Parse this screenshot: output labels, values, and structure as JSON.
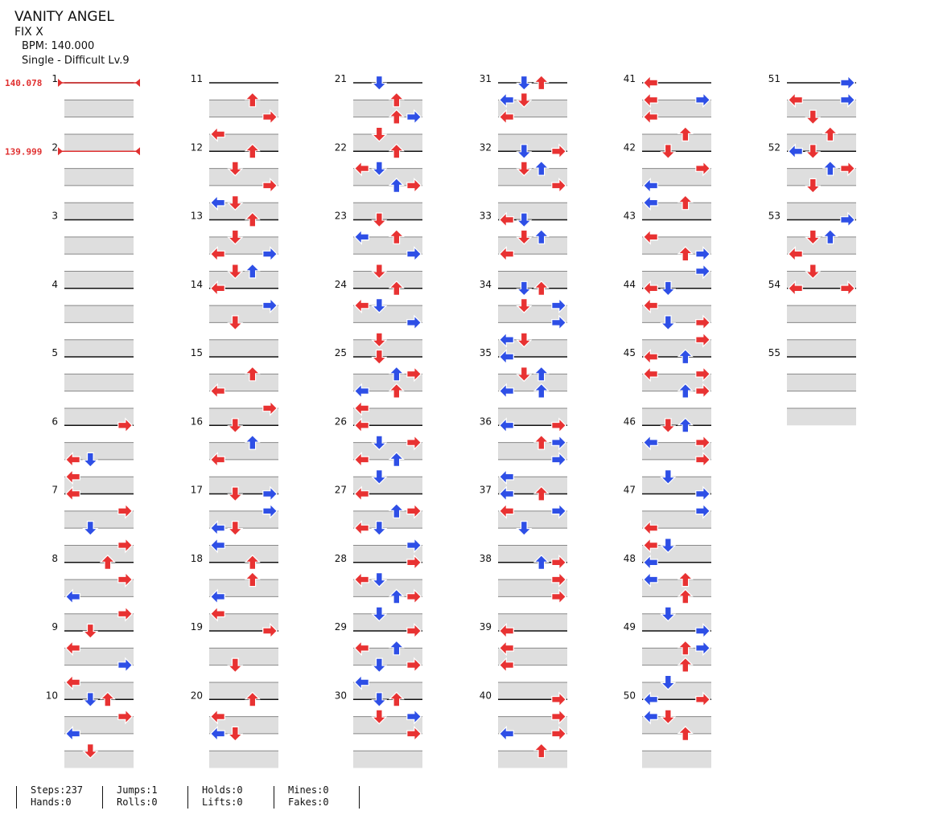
{
  "song": {
    "title": "VANITY ANGEL",
    "subtitle": "FIX X",
    "bpm_line": "BPM: 140.000",
    "difficulty_line": "Single - Difficult Lv.9"
  },
  "bpm_changes": [
    {
      "measure": 1,
      "label": "140.078"
    },
    {
      "measure": 2,
      "label": "139.999"
    }
  ],
  "colors": {
    "quarter": "#e83232",
    "eighth": "#2e4fe6",
    "bpm_marker": "#e03030",
    "band": "#dedede"
  },
  "columns": [
    {
      "start": 1,
      "end": 10
    },
    {
      "start": 11,
      "end": 20
    },
    {
      "start": 21,
      "end": 30
    },
    {
      "start": 31,
      "end": 40
    },
    {
      "start": 41,
      "end": 50
    },
    {
      "start": 51,
      "end": 55
    }
  ],
  "notes": {
    "6": [
      [
        0,
        3,
        "r"
      ],
      [
        2,
        0,
        "r"
      ],
      [
        2,
        1,
        "b"
      ],
      [
        3,
        0,
        "r"
      ]
    ],
    "7": [
      [
        0,
        0,
        "r"
      ],
      [
        1,
        3,
        "r"
      ],
      [
        2,
        1,
        "b"
      ],
      [
        3,
        3,
        "r"
      ]
    ],
    "8": [
      [
        0,
        2,
        "r"
      ],
      [
        1,
        3,
        "r"
      ],
      [
        2,
        0,
        "b"
      ],
      [
        3,
        3,
        "r"
      ]
    ],
    "9": [
      [
        0,
        1,
        "r"
      ],
      [
        1,
        0,
        "r"
      ],
      [
        2,
        3,
        "b"
      ],
      [
        3,
        0,
        "r"
      ]
    ],
    "10": [
      [
        0,
        1,
        "b"
      ],
      [
        0,
        2,
        "r"
      ],
      [
        1,
        3,
        "r"
      ],
      [
        2,
        0,
        "b"
      ],
      [
        3,
        1,
        "r"
      ]
    ],
    "11": [
      [
        1,
        2,
        "r"
      ],
      [
        2,
        3,
        "r"
      ],
      [
        3,
        0,
        "r"
      ]
    ],
    "12": [
      [
        0,
        2,
        "r"
      ],
      [
        1,
        1,
        "r"
      ],
      [
        2,
        3,
        "r"
      ],
      [
        3,
        0,
        "b"
      ],
      [
        3,
        1,
        "r"
      ]
    ],
    "13": [
      [
        0,
        2,
        "r"
      ],
      [
        1,
        1,
        "r"
      ],
      [
        2,
        0,
        "r"
      ],
      [
        2,
        3,
        "b"
      ],
      [
        3,
        1,
        "r"
      ],
      [
        3,
        2,
        "b"
      ]
    ],
    "14": [
      [
        0,
        0,
        "r"
      ],
      [
        1,
        3,
        "b"
      ],
      [
        2,
        1,
        "r"
      ]
    ],
    "15": [
      [
        1,
        2,
        "r"
      ],
      [
        2,
        0,
        "r"
      ],
      [
        3,
        3,
        "r"
      ]
    ],
    "16": [
      [
        0,
        1,
        "r"
      ],
      [
        1,
        2,
        "b"
      ],
      [
        2,
        0,
        "r"
      ]
    ],
    "17": [
      [
        0,
        1,
        "r"
      ],
      [
        0,
        3,
        "b"
      ],
      [
        1,
        3,
        "b"
      ],
      [
        2,
        0,
        "b"
      ],
      [
        2,
        1,
        "r"
      ],
      [
        3,
        0,
        "b"
      ]
    ],
    "18": [
      [
        0,
        2,
        "r"
      ],
      [
        1,
        2,
        "r"
      ],
      [
        2,
        0,
        "b"
      ],
      [
        3,
        0,
        "r"
      ]
    ],
    "19": [
      [
        0,
        3,
        "b"
      ],
      [
        0,
        3,
        "r"
      ],
      [
        2,
        1,
        "b"
      ],
      [
        2,
        1,
        "r"
      ]
    ],
    "20": [
      [
        0,
        2,
        "r"
      ],
      [
        1,
        0,
        "r"
      ],
      [
        2,
        0,
        "b"
      ],
      [
        2,
        1,
        "r"
      ]
    ],
    "21": [
      [
        0,
        1,
        "b"
      ],
      [
        1,
        2,
        "r"
      ],
      [
        2,
        2,
        "r"
      ],
      [
        2,
        3,
        "b"
      ],
      [
        3,
        1,
        "r"
      ]
    ],
    "22": [
      [
        0,
        2,
        "r"
      ],
      [
        1,
        0,
        "r"
      ],
      [
        1,
        1,
        "b"
      ],
      [
        2,
        2,
        "b"
      ],
      [
        2,
        3,
        "r"
      ]
    ],
    "23": [
      [
        0,
        1,
        "r"
      ],
      [
        1,
        2,
        "r"
      ],
      [
        1,
        0,
        "b"
      ],
      [
        2,
        3,
        "b"
      ],
      [
        3,
        1,
        "r"
      ]
    ],
    "24": [
      [
        0,
        2,
        "r"
      ],
      [
        1,
        0,
        "r"
      ],
      [
        1,
        1,
        "b"
      ],
      [
        2,
        3,
        "b"
      ],
      [
        3,
        1,
        "r"
      ]
    ],
    "25": [
      [
        0,
        1,
        "r"
      ],
      [
        1,
        3,
        "r"
      ],
      [
        1,
        2,
        "b"
      ],
      [
        2,
        0,
        "b"
      ],
      [
        2,
        2,
        "r"
      ],
      [
        3,
        0,
        "r"
      ]
    ],
    "26": [
      [
        0,
        0,
        "r"
      ],
      [
        1,
        3,
        "r"
      ],
      [
        1,
        1,
        "b"
      ],
      [
        2,
        2,
        "b"
      ],
      [
        2,
        0,
        "r"
      ],
      [
        3,
        1,
        "b"
      ]
    ],
    "27": [
      [
        0,
        0,
        "r"
      ],
      [
        1,
        3,
        "r"
      ],
      [
        1,
        2,
        "b"
      ],
      [
        2,
        1,
        "b"
      ],
      [
        2,
        0,
        "r"
      ],
      [
        3,
        3,
        "b"
      ]
    ],
    "28": [
      [
        0,
        3,
        "r"
      ],
      [
        1,
        0,
        "r"
      ],
      [
        1,
        1,
        "b"
      ],
      [
        2,
        2,
        "b"
      ],
      [
        2,
        3,
        "r"
      ],
      [
        3,
        1,
        "b"
      ]
    ],
    "29": [
      [
        0,
        3,
        "r"
      ],
      [
        1,
        0,
        "r"
      ],
      [
        1,
        2,
        "b"
      ],
      [
        2,
        1,
        "b"
      ],
      [
        2,
        3,
        "r"
      ],
      [
        3,
        0,
        "b"
      ]
    ],
    "30": [
      [
        0,
        2,
        "r"
      ],
      [
        0,
        1,
        "b"
      ],
      [
        1,
        3,
        "b"
      ],
      [
        1,
        1,
        "r"
      ],
      [
        2,
        3,
        "r"
      ]
    ],
    "31": [
      [
        0,
        2,
        "r"
      ],
      [
        0,
        1,
        "b"
      ],
      [
        1,
        0,
        "b"
      ],
      [
        1,
        1,
        "r"
      ],
      [
        2,
        0,
        "r"
      ]
    ],
    "32": [
      [
        0,
        3,
        "r"
      ],
      [
        0,
        1,
        "b"
      ],
      [
        1,
        2,
        "b"
      ],
      [
        1,
        1,
        "r"
      ],
      [
        2,
        3,
        "r"
      ]
    ],
    "33": [
      [
        0,
        0,
        "r"
      ],
      [
        0,
        1,
        "b"
      ],
      [
        1,
        2,
        "b"
      ],
      [
        1,
        1,
        "r"
      ],
      [
        2,
        0,
        "r"
      ]
    ],
    "34": [
      [
        0,
        2,
        "r"
      ],
      [
        0,
        1,
        "b"
      ],
      [
        1,
        3,
        "b"
      ],
      [
        1,
        1,
        "r"
      ],
      [
        2,
        3,
        "b"
      ],
      [
        3,
        0,
        "b"
      ],
      [
        3,
        1,
        "r"
      ]
    ],
    "35": [
      [
        0,
        0,
        "b"
      ],
      [
        1,
        2,
        "b"
      ],
      [
        1,
        1,
        "r"
      ],
      [
        2,
        2,
        "b"
      ],
      [
        2,
        0,
        "b"
      ]
    ],
    "36": [
      [
        0,
        3,
        "r"
      ],
      [
        0,
        0,
        "b"
      ],
      [
        1,
        3,
        "b"
      ],
      [
        1,
        2,
        "r"
      ],
      [
        2,
        3,
        "b"
      ],
      [
        3,
        0,
        "b"
      ]
    ],
    "37": [
      [
        0,
        2,
        "r"
      ],
      [
        0,
        0,
        "b"
      ],
      [
        1,
        3,
        "b"
      ],
      [
        1,
        0,
        "r"
      ],
      [
        2,
        1,
        "b"
      ]
    ],
    "38": [
      [
        0,
        2,
        "b"
      ],
      [
        0,
        3,
        "r"
      ],
      [
        1,
        3,
        "r"
      ],
      [
        2,
        3,
        "r"
      ]
    ],
    "39": [
      [
        0,
        0,
        "r"
      ],
      [
        1,
        0,
        "r"
      ],
      [
        2,
        0,
        "r"
      ]
    ],
    "40": [
      [
        0,
        3,
        "r"
      ],
      [
        1,
        3,
        "r"
      ],
      [
        2,
        0,
        "b"
      ],
      [
        2,
        3,
        "r"
      ],
      [
        3,
        2,
        "r"
      ]
    ],
    "41": [
      [
        0,
        0,
        "r"
      ],
      [
        1,
        0,
        "r"
      ],
      [
        1,
        3,
        "b"
      ],
      [
        2,
        0,
        "r"
      ],
      [
        3,
        2,
        "r"
      ]
    ],
    "42": [
      [
        0,
        1,
        "r"
      ],
      [
        1,
        3,
        "r"
      ],
      [
        2,
        0,
        "b"
      ],
      [
        3,
        0,
        "b"
      ],
      [
        3,
        2,
        "r"
      ]
    ],
    "43": [
      [
        1,
        0,
        "r"
      ],
      [
        2,
        3,
        "b"
      ],
      [
        2,
        2,
        "r"
      ],
      [
        3,
        3,
        "b"
      ]
    ],
    "44": [
      [
        0,
        0,
        "r"
      ],
      [
        0,
        1,
        "b"
      ],
      [
        1,
        0,
        "r"
      ],
      [
        2,
        1,
        "b"
      ],
      [
        2,
        3,
        "r"
      ],
      [
        3,
        3,
        "r"
      ]
    ],
    "45": [
      [
        0,
        0,
        "r"
      ],
      [
        0,
        2,
        "b"
      ],
      [
        1,
        0,
        "r"
      ],
      [
        1,
        3,
        "r"
      ],
      [
        2,
        2,
        "b"
      ],
      [
        2,
        3,
        "r"
      ]
    ],
    "46": [
      [
        0,
        2,
        "b"
      ],
      [
        0,
        1,
        "r"
      ],
      [
        1,
        0,
        "b"
      ],
      [
        1,
        3,
        "r"
      ],
      [
        2,
        3,
        "r"
      ],
      [
        3,
        1,
        "b"
      ]
    ],
    "47": [
      [
        0,
        3,
        "b"
      ],
      [
        1,
        3,
        "b"
      ],
      [
        2,
        0,
        "r"
      ],
      [
        3,
        0,
        "r"
      ],
      [
        3,
        1,
        "b"
      ]
    ],
    "48": [
      [
        0,
        0,
        "b"
      ],
      [
        1,
        0,
        "b"
      ],
      [
        1,
        2,
        "r"
      ],
      [
        2,
        2,
        "r"
      ],
      [
        3,
        1,
        "b"
      ]
    ],
    "49": [
      [
        0,
        3,
        "b"
      ],
      [
        1,
        3,
        "b"
      ],
      [
        1,
        2,
        "r"
      ],
      [
        2,
        2,
        "r"
      ],
      [
        3,
        1,
        "b"
      ]
    ],
    "50": [
      [
        0,
        3,
        "r"
      ],
      [
        0,
        0,
        "b"
      ],
      [
        1,
        0,
        "b"
      ],
      [
        1,
        1,
        "r"
      ],
      [
        2,
        2,
        "r"
      ]
    ],
    "51": [
      [
        0,
        3,
        "b"
      ],
      [
        1,
        0,
        "r"
      ],
      [
        1,
        3,
        "b"
      ],
      [
        2,
        1,
        "r"
      ],
      [
        3,
        2,
        "r"
      ]
    ],
    "52": [
      [
        0,
        0,
        "b"
      ],
      [
        0,
        1,
        "r"
      ],
      [
        1,
        2,
        "b"
      ],
      [
        1,
        3,
        "r"
      ],
      [
        2,
        1,
        "r"
      ]
    ],
    "53": [
      [
        0,
        3,
        "b"
      ],
      [
        1,
        1,
        "r"
      ],
      [
        1,
        2,
        "b"
      ],
      [
        2,
        0,
        "r"
      ],
      [
        3,
        1,
        "r"
      ]
    ],
    "54": [
      [
        0,
        0,
        "r"
      ],
      [
        0,
        3,
        "r"
      ]
    ]
  },
  "stats": [
    {
      "a": "Steps:237",
      "b": "Hands:0"
    },
    {
      "a": "Jumps:1",
      "b": "Rolls:0"
    },
    {
      "a": "Holds:0",
      "b": "Lifts:0"
    },
    {
      "a": "Mines:0",
      "b": "Fakes:0"
    }
  ]
}
